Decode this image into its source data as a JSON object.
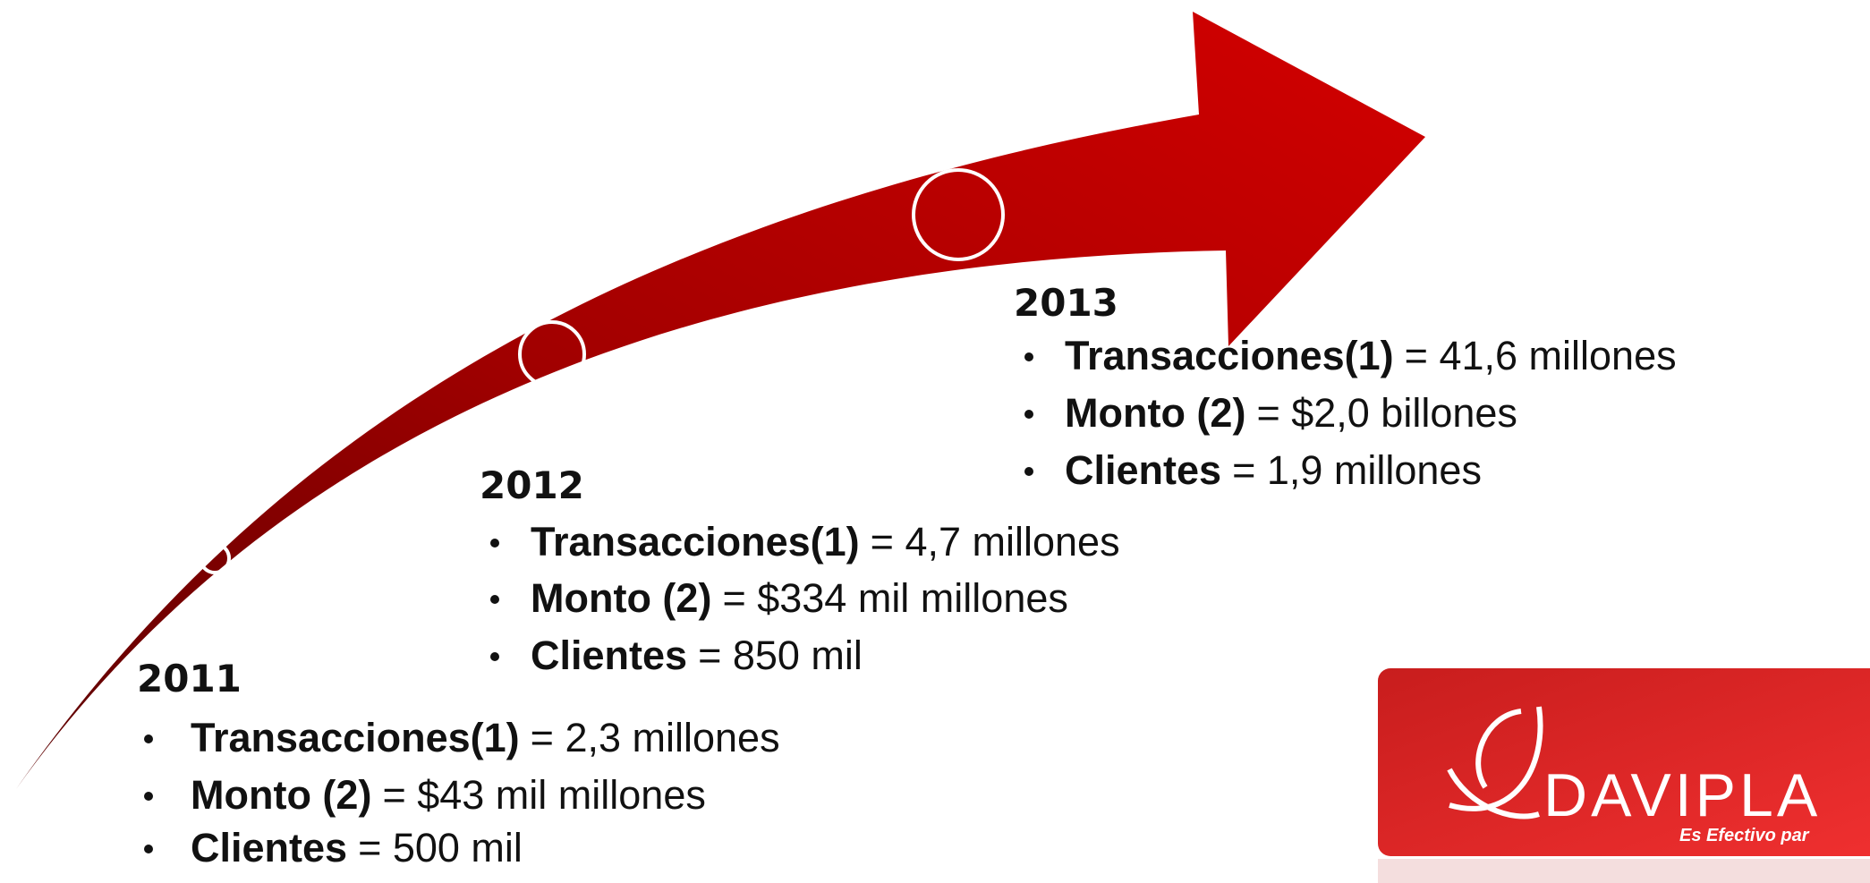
{
  "timeline": [
    {
      "year": "2011",
      "items": [
        {
          "label": "Transacciones(1)",
          "value": "= 2,3 millones"
        },
        {
          "label": "Monto (2)",
          "value": "= $43 mil millones"
        },
        {
          "label": "Clientes",
          "value": "= 500 mil"
        }
      ]
    },
    {
      "year": "2012",
      "items": [
        {
          "label": "Transacciones(1)",
          "value": "= 4,7 millones"
        },
        {
          "label": "Monto (2)",
          "value": "= $334 mil millones"
        },
        {
          "label": "Clientes",
          "value": "= 850 mil"
        }
      ]
    },
    {
      "year": "2013",
      "items": [
        {
          "label": "Transacciones(1)",
          "value": "= 41,6 millones"
        },
        {
          "label": "Monto (2)",
          "value": "= $2,0 billones"
        },
        {
          "label": "Clientes",
          "value": "= 1,9 millones"
        }
      ]
    }
  ],
  "logo": {
    "name": "DAVIPLA",
    "tagline": "Es Efectivo par"
  }
}
